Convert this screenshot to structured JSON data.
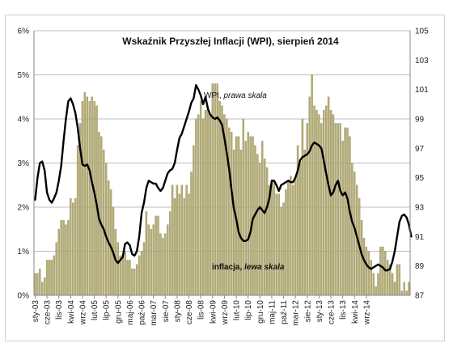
{
  "chart_data": {
    "type": "bar+line",
    "title": "Wskaźnik Przyszłej Inflacji (WPI), sierpień 2014",
    "annotations": {
      "wpi_prefix": "WPI, ",
      "wpi_italic": "prawa skala",
      "infl_prefix": "inflacja, ",
      "infl_italic": "lewa skala"
    },
    "left_axis": {
      "ylim": [
        0,
        6
      ],
      "tick_values": [
        0,
        1,
        2,
        3,
        4,
        5,
        6
      ],
      "tick_labels": [
        "0%",
        "1%",
        "2%",
        "3%",
        "4%",
        "5%",
        "6%"
      ]
    },
    "right_axis": {
      "ylim": [
        87,
        105
      ],
      "tick_values": [
        87,
        89,
        91,
        93,
        95,
        97,
        99,
        101,
        103,
        105
      ],
      "tick_labels": [
        "87",
        "89",
        "91",
        "93",
        "95",
        "97",
        "99",
        "101",
        "103",
        "105"
      ]
    },
    "x_tick_labels": [
      "sty-03",
      "cze-03",
      "lis-03",
      "kwi-04",
      "wrz-04",
      "lut-05",
      "lip-05",
      "gru-05",
      "maj-06",
      "paź-06",
      "mar-07",
      "sie-07",
      "sty-08",
      "cze-08",
      "lis-08",
      "kwi-09",
      "wrz-09",
      "lut-10",
      "lip-10",
      "gru-10",
      "maj-11",
      "paź-11",
      "mar-12",
      "sie-12",
      "sty-13",
      "cze-13",
      "lis-13",
      "kwi-14",
      "wrz-14"
    ],
    "grid": true,
    "colors": {
      "bars": "#b5ad78",
      "bars_edge": "#8f8852",
      "line": "#000000",
      "grid": "#bdbdbd"
    },
    "series": [
      {
        "name": "inflacja",
        "type": "bar",
        "axis": "left",
        "start": "sty-03",
        "values": [
          0.5,
          0.5,
          0.6,
          0.3,
          0.4,
          0.8,
          0.8,
          0.8,
          0.9,
          1.2,
          1.5,
          1.7,
          1.7,
          1.6,
          1.7,
          2.2,
          2.1,
          2.2,
          3.4,
          3.9,
          4.4,
          4.6,
          4.5,
          4.4,
          4.5,
          4.4,
          4.3,
          3.7,
          3.6,
          3.3,
          3.0,
          2.6,
          2.4,
          2.0,
          1.5,
          1.2,
          0.9,
          0.9,
          1.0,
          0.8,
          0.8,
          0.6,
          0.6,
          0.7,
          0.9,
          1.0,
          1.2,
          1.9,
          1.6,
          1.5,
          1.6,
          1.8,
          1.8,
          1.4,
          1.3,
          1.4,
          1.6,
          1.9,
          2.5,
          2.2,
          2.5,
          2.3,
          2.5,
          2.2,
          2.5,
          2.3,
          2.8,
          3.4,
          4.0,
          4.1,
          4.4,
          4.0,
          4.2,
          4.3,
          4.1,
          4.8,
          4.8,
          4.8,
          4.4,
          4.3,
          4.1,
          4.0,
          3.8,
          3.7,
          3.3,
          3.6,
          3.6,
          3.3,
          4.0,
          3.5,
          3.7,
          3.6,
          3.6,
          3.4,
          3.2,
          3.0,
          3.5,
          3.1,
          2.9,
          2.5,
          2.6,
          2.6,
          2.3,
          2.3,
          2.0,
          2.1,
          2.4,
          2.6,
          2.7,
          2.5,
          2.7,
          3.4,
          3.0,
          4.0,
          3.3,
          3.9,
          4.5,
          5.0,
          4.3,
          4.2,
          4.1,
          3.9,
          4.2,
          4.3,
          4.5,
          4.2,
          4.1,
          3.9,
          3.9,
          3.9,
          3.5,
          3.8,
          3.8,
          3.6,
          3.0,
          2.8,
          2.5,
          2.2,
          1.7,
          1.3,
          1.1,
          1.0,
          0.8,
          0.5,
          0.2,
          0.5,
          1.1,
          1.1,
          1.0,
          0.8,
          0.7,
          0.5,
          0.3,
          0.7,
          0.7,
          0.1,
          0.3,
          0.1,
          0.3
        ]
      },
      {
        "name": "WPI",
        "type": "line",
        "axis": "right",
        "start": "sty-03",
        "values": [
          93.5,
          95.0,
          96.0,
          96.1,
          95.5,
          94.0,
          93.5,
          93.3,
          93.6,
          94.0,
          94.8,
          95.8,
          97.5,
          99.0,
          100.2,
          100.4,
          100.0,
          99.4,
          98.4,
          97.0,
          95.9,
          95.8,
          95.9,
          95.5,
          94.7,
          94.0,
          93.2,
          92.2,
          91.8,
          91.5,
          91.0,
          90.6,
          90.3,
          89.9,
          89.4,
          89.2,
          89.4,
          89.6,
          90.5,
          90.6,
          90.4,
          89.8,
          89.7,
          90.0,
          91.0,
          92.6,
          93.3,
          94.3,
          94.8,
          94.7,
          94.6,
          94.6,
          94.3,
          94.1,
          94.3,
          94.8,
          95.3,
          95.5,
          95.6,
          96.0,
          96.9,
          97.7,
          98.0,
          98.5,
          99.0,
          99.5,
          100.1,
          100.4,
          101.3,
          101.0,
          100.6,
          100.0,
          100.5,
          99.7,
          99.3,
          99.1,
          99.0,
          99.1,
          98.9,
          98.6,
          97.7,
          96.7,
          95.6,
          94.2,
          92.9,
          92.2,
          91.3,
          90.9,
          90.7,
          90.7,
          90.8,
          91.3,
          92.2,
          92.5,
          92.8,
          93.0,
          92.8,
          92.6,
          93.0,
          93.6,
          94.8,
          94.8,
          94.5,
          94.1,
          94.5,
          94.6,
          94.7,
          94.8,
          94.7,
          94.7,
          95.0,
          95.5,
          96.2,
          96.4,
          96.5,
          96.6,
          96.8,
          97.2,
          97.4,
          97.3,
          97.2,
          97.0,
          96.2,
          95.3,
          94.5,
          93.8,
          94.0,
          94.5,
          94.8,
          94.1,
          93.8,
          94.0,
          93.6,
          92.7,
          92.0,
          91.6,
          91.0,
          90.4,
          89.8,
          89.4,
          89.1,
          88.9,
          88.8,
          88.9,
          89.0,
          89.1,
          89.0,
          88.9,
          88.7,
          88.7,
          88.8,
          89.3,
          90.0,
          91.0,
          92.0,
          92.4,
          92.5,
          92.3,
          91.8,
          91.0
        ]
      }
    ]
  }
}
